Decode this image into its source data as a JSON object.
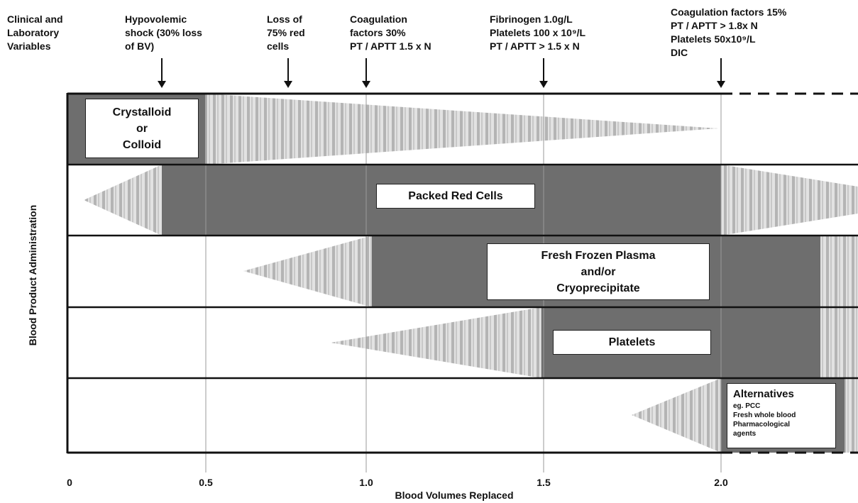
{
  "header": {
    "variables_label": "Clinical and\nLaboratory\nVariables",
    "events": [
      {
        "text": "Hypovolemic\nshock (30% loss\nof BV)",
        "bv": 0.3
      },
      {
        "text": "Loss of\n75% red\ncells",
        "bv": 0.75
      },
      {
        "text": "Coagulation\nfactors 30%\nPT / APTT 1.5 x N",
        "bv": 1.0
      },
      {
        "text": "Fibrinogen 1.0g/L\nPlatelets 100 x 10⁹/L\nPT / APTT > 1.5 x N",
        "bv": 1.5
      },
      {
        "text": "Coagulation factors 15%\nPT / APTT > 1.8x N\nPlatelets 50x10⁹/L\nDIC",
        "bv": 2.0
      }
    ]
  },
  "y_axis_label": "Blood  Product Administration",
  "x_axis": {
    "label": "Blood Volumes Replaced",
    "ticks": [
      {
        "value": 0,
        "label": "0"
      },
      {
        "value": 0.5,
        "label": "0.5"
      },
      {
        "value": 1.0,
        "label": "1.0"
      },
      {
        "value": 1.5,
        "label": "1.5"
      },
      {
        "value": 2.0,
        "label": "2.0"
      }
    ],
    "gridlines": [
      0.5,
      1.0,
      1.5,
      2.0
    ]
  },
  "rows": [
    {
      "name": "crystalloid",
      "label": "Crystalloid\nor\nColloid"
    },
    {
      "name": "packed-red-cells",
      "label": "Packed Red Cells"
    },
    {
      "name": "fresh-frozen-plasma",
      "label": "Fresh Frozen Plasma\nand/or\nCryoprecipitate"
    },
    {
      "name": "platelets",
      "label": "Platelets"
    },
    {
      "name": "alternatives",
      "label": "Alternatives",
      "sub": "eg.  PCC\nFresh whole blood\nPharmacological\nagents"
    }
  ],
  "colors": {
    "solid": "#6e6e6e",
    "stripe_light": "#e2e2e2",
    "stripe_dark": "#a9a9a9",
    "border": "#111111"
  }
}
